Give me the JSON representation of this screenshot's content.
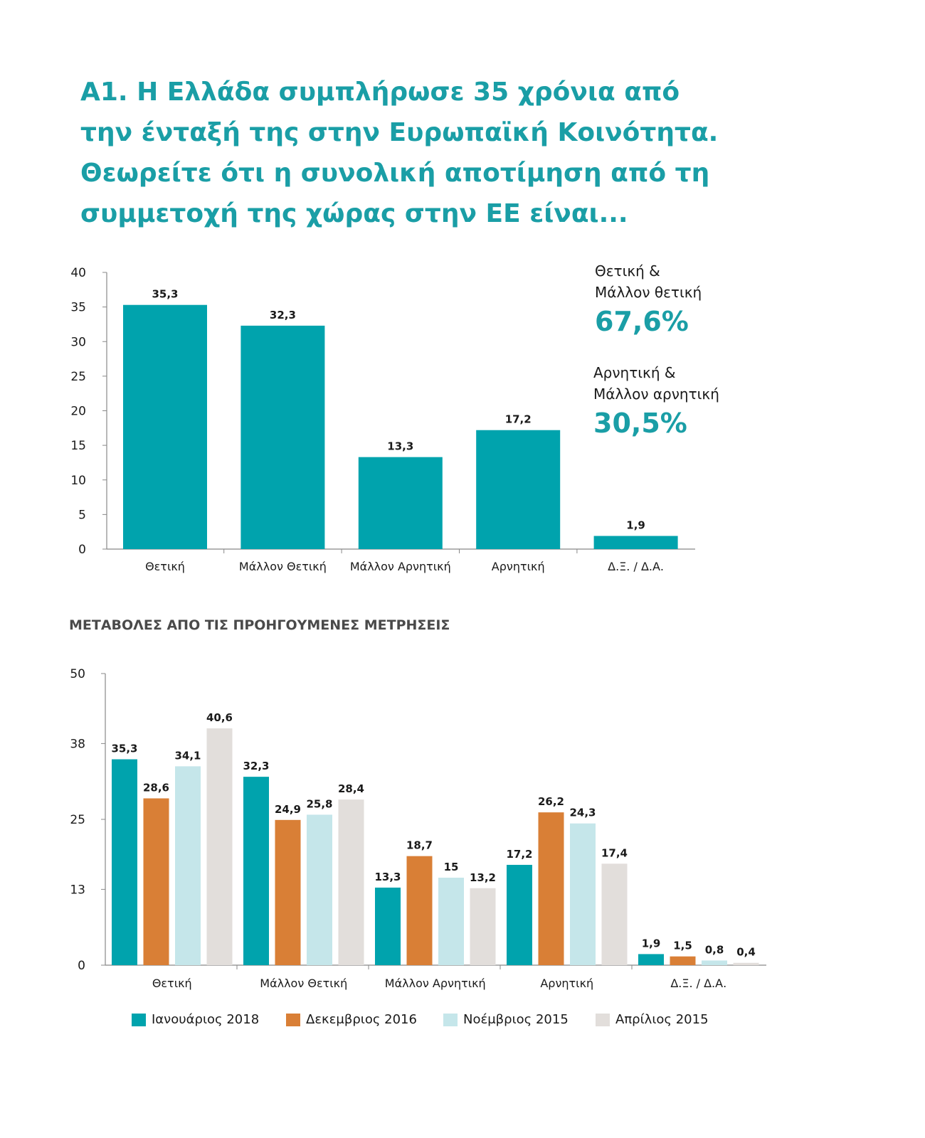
{
  "title_lines": [
    "Α1. Η Ελλάδα συμπλήρωσε 35 χρόνια από",
    "την ένταξή της στην Ευρωπαϊκή Κοινότητα.",
    "Θεωρείτε ότι η συνολική αποτίμηση από τη",
    "συμμετοχή της χώρας στην ΕΕ είναι..."
  ],
  "summary": {
    "positive_label_1": "Θετική &",
    "positive_label_2": "Μάλλον θετική",
    "positive_value": "67,6%",
    "negative_label_1": "Αρνητική &",
    "negative_label_2": "Μάλλον αρνητική",
    "negative_value": "30,5%"
  },
  "subtitle": "ΜΕΤΑΒΟΛΕΣ ΑΠΟ ΤΙΣ ΠΡΟΗΓΟΥΜΕΝΕΣ ΜΕΤΡΗΣΕΙΣ",
  "colors": {
    "teal": "#00a3ad",
    "orange": "#d97f36",
    "light_blue": "#c5e6ea",
    "light_gray": "#e2dedb",
    "axis": "#888888"
  },
  "chart_data": [
    {
      "type": "bar",
      "title": "",
      "categories": [
        "Θετική",
        "Μάλλον Θετική",
        "Μάλλον Αρνητική",
        "Αρνητική",
        "Δ.Ξ. / Δ.Α."
      ],
      "values": [
        35.3,
        32.3,
        13.3,
        17.2,
        1.9
      ],
      "value_labels": [
        "35,3",
        "32,3",
        "13,3",
        "17,2",
        "1,9"
      ],
      "yticks": [
        "0",
        "5",
        "10",
        "15",
        "20",
        "25",
        "30",
        "35",
        "40"
      ],
      "ylim": [
        0,
        40
      ],
      "xlabel": "",
      "ylabel": "",
      "grid": false,
      "color": "#00a3ad"
    },
    {
      "type": "bar",
      "title": "ΜΕΤΑΒΟΛΕΣ ΑΠΟ ΤΙΣ ΠΡΟΗΓΟΥΜΕΝΕΣ ΜΕΤΡΗΣΕΙΣ",
      "categories": [
        "Θετική",
        "Μάλλον Θετική",
        "Μάλλον Αρνητική",
        "Αρνητική",
        "Δ.Ξ. / Δ.Α."
      ],
      "series": [
        {
          "name": "Ιανουάριος 2018",
          "color": "#00a3ad",
          "values": [
            35.3,
            32.3,
            13.3,
            17.2,
            1.9
          ],
          "value_labels": [
            "35,3",
            "32,3",
            "13,3",
            "17,2",
            "1,9"
          ]
        },
        {
          "name": "Δεκεμβριος 2016",
          "color": "#d97f36",
          "values": [
            28.6,
            24.9,
            18.7,
            26.2,
            1.5
          ],
          "value_labels": [
            "28,6",
            "24,9",
            "18,7",
            "26,2",
            "1,5"
          ]
        },
        {
          "name": "Νοέμβριος 2015",
          "color": "#c5e6ea",
          "values": [
            34.1,
            25.8,
            15,
            24.3,
            0.8
          ],
          "value_labels": [
            "34,1",
            "25,8",
            "15",
            "24,3",
            "0,8"
          ]
        },
        {
          "name": "Απρίλιος 2015",
          "color": "#e2dedb",
          "values": [
            40.6,
            28.4,
            13.2,
            17.4,
            0.4
          ],
          "value_labels": [
            "40,6",
            "28,4",
            "13,2",
            "17,4",
            "0,4"
          ]
        }
      ],
      "yticks": [
        "0",
        "13",
        "25",
        "38",
        "50"
      ],
      "ylim": [
        0,
        50
      ],
      "xlabel": "",
      "ylabel": "",
      "grid": false,
      "legend": "bottom"
    }
  ]
}
